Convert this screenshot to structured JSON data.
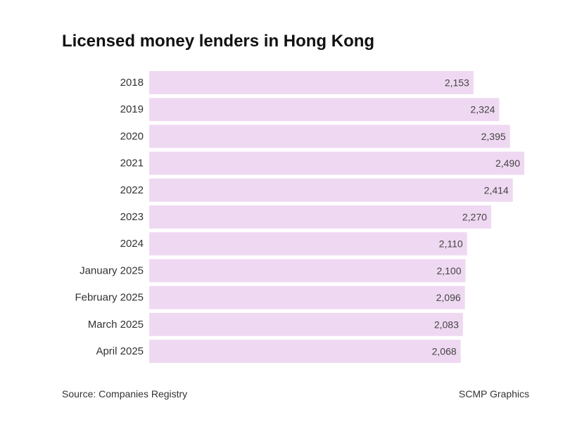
{
  "chart_data": {
    "type": "bar",
    "orientation": "horizontal",
    "title": "Licensed money lenders in Hong Kong",
    "categories": [
      "2018",
      "2019",
      "2020",
      "2021",
      "2022",
      "2023",
      "2024",
      "January 2025",
      "February 2025",
      "March 2025",
      "April 2025"
    ],
    "values": [
      2153,
      2324,
      2395,
      2490,
      2414,
      2270,
      2110,
      2100,
      2096,
      2083,
      2068
    ],
    "value_labels": [
      "2,153",
      "2,324",
      "2,395",
      "2,490",
      "2,414",
      "2,270",
      "2,110",
      "2,100",
      "2,096",
      "2,083",
      "2,068"
    ],
    "xlim": [
      0,
      2490
    ],
    "grid": false,
    "bar_color": "#efd9f2"
  },
  "footer": {
    "source": "Source: Companies Registry",
    "credit": "SCMP Graphics"
  }
}
